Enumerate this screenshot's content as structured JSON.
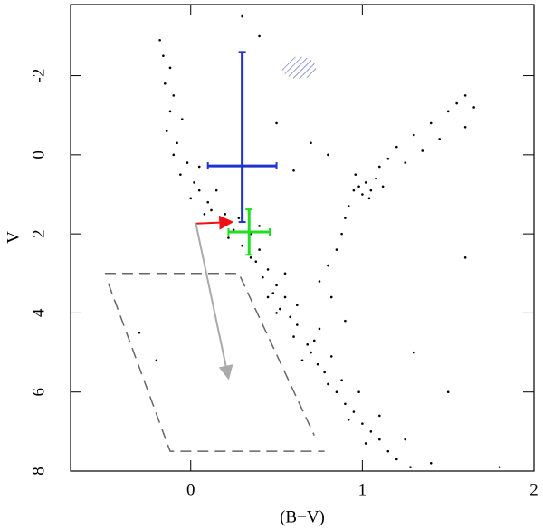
{
  "chart_data": {
    "type": "scatter",
    "xlabel": "(B−V)",
    "ylabel": "V",
    "xlim": [
      -0.7,
      2
    ],
    "ylim": [
      8,
      -3.8
    ],
    "xticks": [
      0,
      1,
      2
    ],
    "yticks": [
      8,
      6,
      4,
      2,
      0,
      -2
    ],
    "series": [
      {
        "color": "#000000",
        "x": [
          -0.18,
          -0.16,
          -0.12,
          -0.15,
          -0.1,
          -0.12,
          -0.05,
          -0.14,
          -0.08,
          -0.1,
          -0.02,
          -0.06,
          0.02,
          0.05,
          0.0,
          0.1,
          0.12,
          0.2,
          0.18,
          0.28,
          0.25,
          0.35,
          0.3,
          0.4,
          0.38,
          0.45,
          0.42,
          0.5,
          0.48,
          0.55,
          0.52,
          0.58,
          0.62,
          0.6,
          0.68,
          0.7,
          0.74,
          0.78,
          0.8,
          0.85,
          0.9,
          0.95,
          1.0,
          1.05,
          1.1,
          1.15,
          1.2,
          1.28,
          0.65,
          0.72,
          0.5,
          0.45,
          0.88,
          0.92,
          1.02,
          0.35,
          0.22,
          0.08,
          0.15,
          0.05,
          0.3,
          0.4,
          0.55,
          0.62,
          0.75,
          0.82,
          0.98,
          1.1,
          1.25,
          1.4,
          0.75,
          0.8,
          0.85,
          0.88,
          0.9,
          0.92,
          0.95,
          0.98,
          1.02,
          1.05,
          1.0,
          1.08,
          1.12,
          0.96,
          1.04,
          1.1,
          1.15,
          1.2,
          1.3,
          1.4,
          1.5,
          1.55,
          1.6,
          1.65,
          1.45,
          1.35,
          1.25,
          1.6,
          0.7,
          0.8,
          0.6,
          0.5,
          0.82,
          0.9,
          -0.3,
          1.5,
          1.8,
          0.3,
          0.4,
          1.3,
          -0.2,
          1.6
        ],
        "y": [
          -2.9,
          -2.5,
          -2.2,
          -1.8,
          -1.5,
          -1.1,
          -0.9,
          -0.6,
          -0.3,
          0,
          0.2,
          0.5,
          0.7,
          0.9,
          1.1,
          1.2,
          1.4,
          1.5,
          1.7,
          1.6,
          1.9,
          2.0,
          2.3,
          2.4,
          2.7,
          2.9,
          3.1,
          3.3,
          3.5,
          3.6,
          3.9,
          4.1,
          4.3,
          4.6,
          4.8,
          5.0,
          5.3,
          5.5,
          5.8,
          6.0,
          6.3,
          6.5,
          6.8,
          7.0,
          7.2,
          7.5,
          7.7,
          7.9,
          5.2,
          4.7,
          4.0,
          3.6,
          5.7,
          6.7,
          7.3,
          2.6,
          2.1,
          1.5,
          0.9,
          0.3,
          1.2,
          1.8,
          3.0,
          3.8,
          4.4,
          5.1,
          6.0,
          6.6,
          7.2,
          7.8,
          3.2,
          2.8,
          2.4,
          2.0,
          1.6,
          1.3,
          0.9,
          0.8,
          0.7,
          0.9,
          1.0,
          0.6,
          0.8,
          0.5,
          1.1,
          0.3,
          0.1,
          -0.2,
          -0.5,
          -0.8,
          -1.1,
          -1.3,
          -1.5,
          -1.2,
          -0.4,
          -0.1,
          0.2,
          -0.7,
          -0.3,
          0.0,
          0.4,
          -0.8,
          3.6,
          4.2,
          4.5,
          6.0,
          7.9,
          -3.5,
          -3.0,
          5.0,
          5.2,
          2.6
        ]
      }
    ],
    "error_bars": [
      {
        "color": "#2233cc",
        "x": 0.3,
        "y": 0.28,
        "xmin": 0.1,
        "xmax": 0.5,
        "ymin": -2.6,
        "ymax": 1.7
      },
      {
        "color": "#22dd22",
        "x": 0.34,
        "y": 1.95,
        "xmin": 0.22,
        "xmax": 0.46,
        "ymin": 1.38,
        "ymax": 2.53
      }
    ],
    "arrows": [
      {
        "color": "#ee1111",
        "x": [
          0.03,
          0.24
        ],
        "y": [
          1.74,
          1.7
        ]
      },
      {
        "color": "#aaaaaa",
        "x": [
          0.03,
          0.22
        ],
        "y": [
          1.74,
          5.65
        ]
      }
    ],
    "dashed_lines": [
      {
        "color": "#666666",
        "x": [
          -0.5,
          0.28,
          0.72
        ],
        "y": [
          3.0,
          3.0,
          7.1
        ]
      },
      {
        "color": "#666666",
        "x": [
          -0.48,
          -0.12,
          0.78
        ],
        "y": [
          3.25,
          7.5,
          7.5
        ]
      }
    ],
    "ellipse": {
      "color": "#3344bb",
      "x": 0.63,
      "y": -2.2,
      "rx": 0.1,
      "ry": 0.28
    }
  }
}
